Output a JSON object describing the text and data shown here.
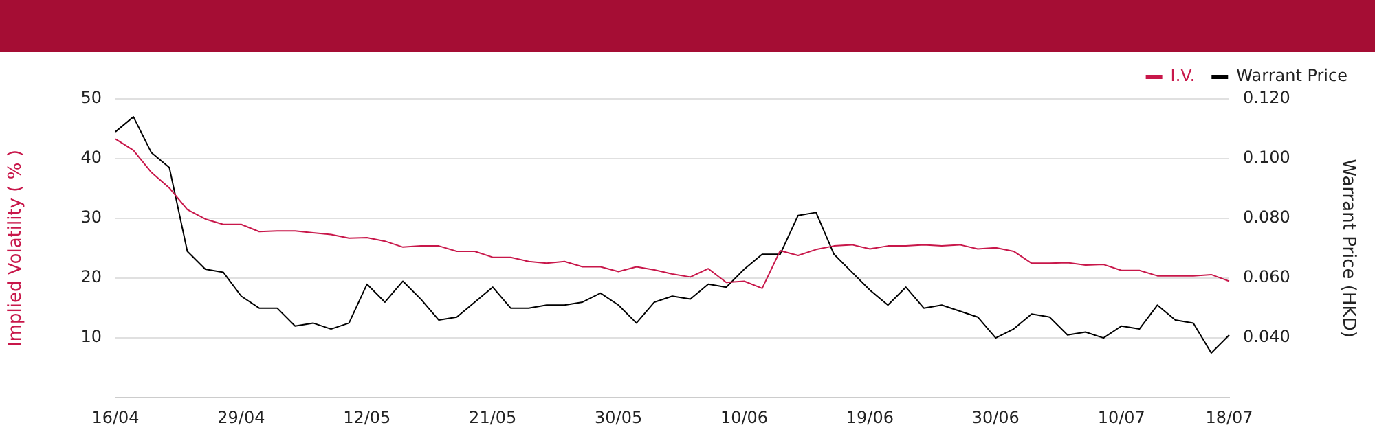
{
  "chart_data": {
    "type": "line",
    "ylabel": "Implied Volatility ( % )",
    "y2label": "Warrant Price (HKD)",
    "categories": [
      "16/04",
      null,
      null,
      null,
      null,
      null,
      null,
      "29/04",
      null,
      null,
      null,
      null,
      null,
      null,
      "12/05",
      null,
      null,
      null,
      null,
      null,
      null,
      "21/05",
      null,
      null,
      null,
      null,
      null,
      null,
      "30/05",
      null,
      null,
      null,
      null,
      null,
      null,
      "10/06",
      null,
      null,
      null,
      null,
      null,
      null,
      "19/06",
      null,
      null,
      null,
      null,
      null,
      null,
      "30/06",
      null,
      null,
      null,
      null,
      null,
      null,
      "10/07",
      null,
      null,
      null,
      null,
      null,
      "18/07"
    ],
    "series": [
      {
        "name": "I.V.",
        "color": "#c8174a",
        "values": [
          43.3,
          41.4,
          37.7,
          35.1,
          31.5,
          29.9,
          29.0,
          29.0,
          27.8,
          27.9,
          27.9,
          27.6,
          27.3,
          26.7,
          26.8,
          26.2,
          25.2,
          25.4,
          25.4,
          24.5,
          24.5,
          23.5,
          23.5,
          22.8,
          22.5,
          22.8,
          21.9,
          21.9,
          21.1,
          21.9,
          21.4,
          20.7,
          20.2,
          21.6,
          19.3,
          19.5,
          18.3,
          24.6,
          23.8,
          24.8,
          25.4,
          25.6,
          24.9,
          25.4,
          25.4,
          25.6,
          25.4,
          25.6,
          24.9,
          25.1,
          24.5,
          22.5,
          22.5,
          22.6,
          22.2,
          22.3,
          21.3,
          21.3,
          20.4,
          20.4,
          20.4,
          20.6,
          19.5
        ]
      },
      {
        "name": "Warrant Price",
        "color": "#000000",
        "axis": "y2",
        "values": [
          0.109,
          0.114,
          0.102,
          0.097,
          0.069,
          0.063,
          0.062,
          0.054,
          0.05,
          0.05,
          0.044,
          0.045,
          0.043,
          0.045,
          0.058,
          0.052,
          0.059,
          0.053,
          0.046,
          0.047,
          0.052,
          0.057,
          0.05,
          0.05,
          0.051,
          0.051,
          0.052,
          0.055,
          0.051,
          0.045,
          0.052,
          0.054,
          0.053,
          0.058,
          0.057,
          0.063,
          0.068,
          0.068,
          0.081,
          0.082,
          0.068,
          0.062,
          0.056,
          0.051,
          0.057,
          0.05,
          0.051,
          0.049,
          0.047,
          0.04,
          0.043,
          0.048,
          0.047,
          0.041,
          0.042,
          0.04,
          0.044,
          0.043,
          0.051,
          0.046,
          0.045,
          0.035,
          0.041
        ]
      }
    ],
    "ylim": [
      0,
      50
    ],
    "yticks": [
      10,
      20,
      30,
      40,
      50
    ],
    "y2lim": [
      0.02,
      0.12
    ],
    "y2ticks": [
      {
        "value": 0.04,
        "label": "0.040"
      },
      {
        "value": 0.06,
        "label": "0.060"
      },
      {
        "value": 0.08,
        "label": "0.080"
      },
      {
        "value": 0.1,
        "label": "0.100"
      },
      {
        "value": 0.12,
        "label": "0.120"
      }
    ],
    "grid": "y",
    "legend": "top right",
    "marker": "none",
    "line_style": "solid"
  }
}
